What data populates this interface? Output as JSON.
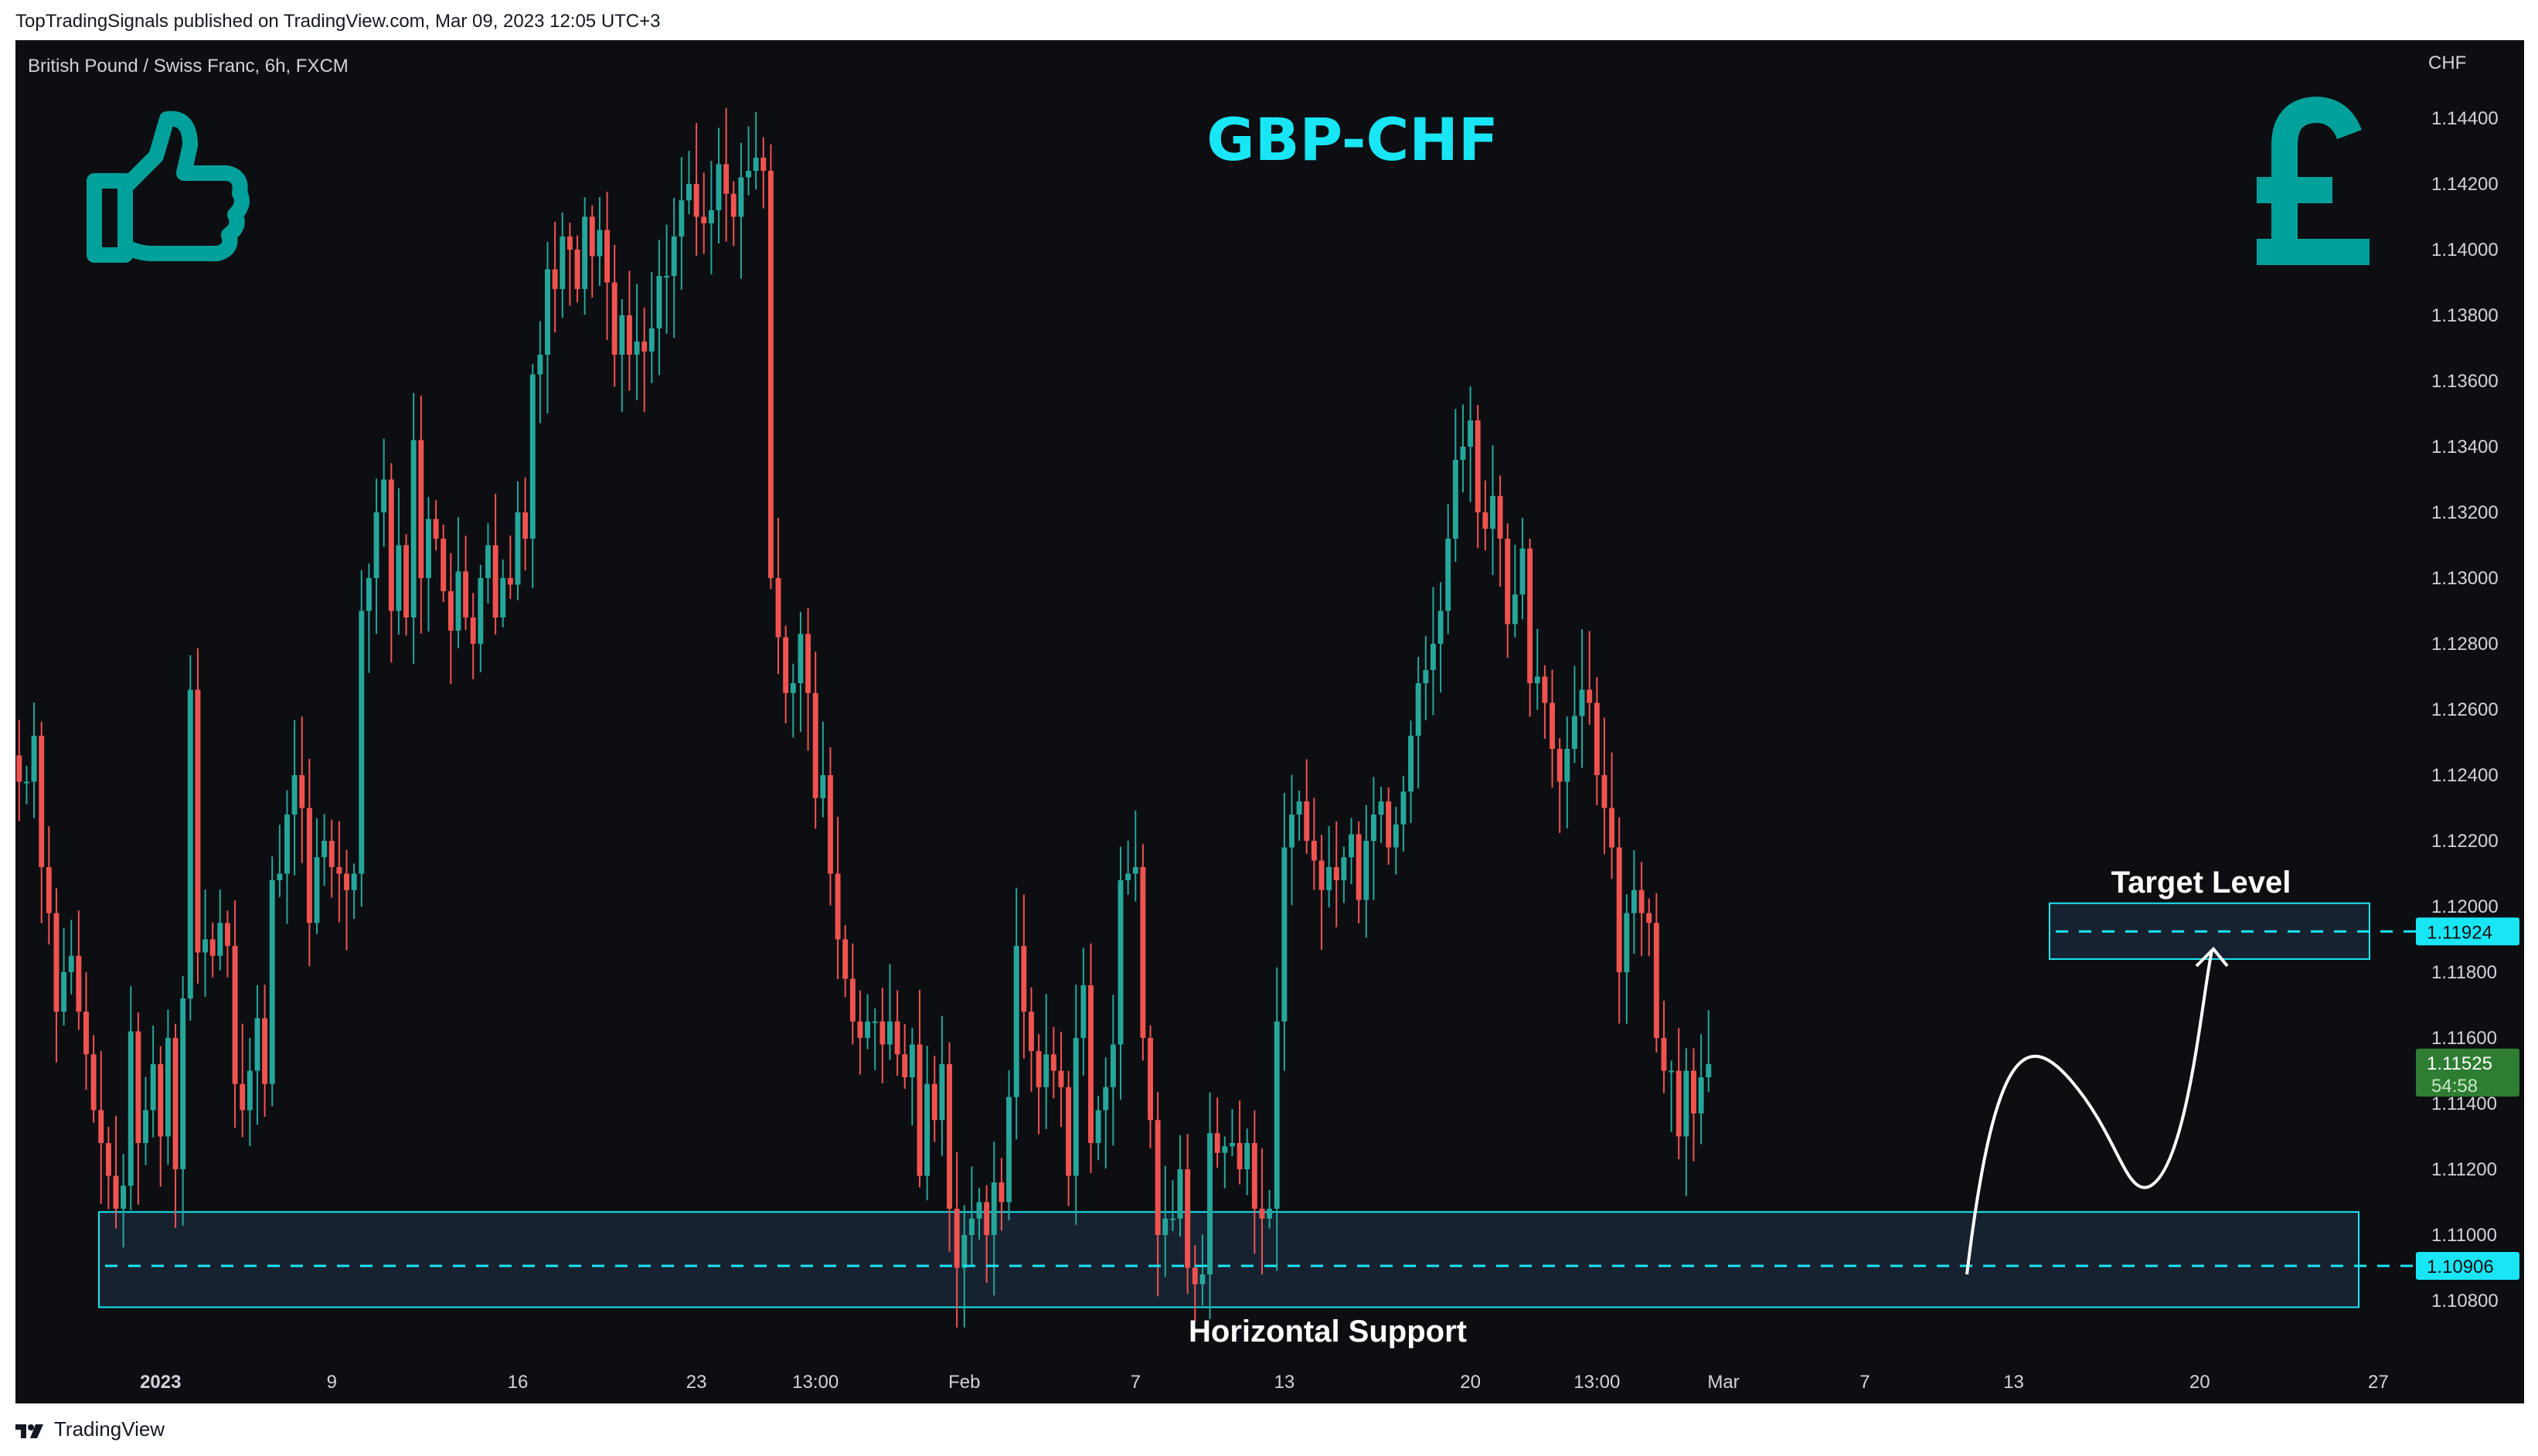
{
  "header": {
    "published_line": "TopTradingSignals published on TradingView.com, Mar 09, 2023 12:05 UTC+3"
  },
  "footer": {
    "brand": "TradingView"
  },
  "colors": {
    "up": "#26a69a",
    "down": "#ef5350",
    "accent": "#19e6f4",
    "icon_teal": "#00a19a",
    "last_price_bg": "#2e7d32"
  },
  "icons": [
    "thumbs-up-icon",
    "pound-sign-icon",
    "tradingview-logo-icon"
  ],
  "chart_data": {
    "type": "candlestick",
    "symbol_label": "British Pound / Swiss Franc, 6h, FXCM",
    "title": "GBP-CHF",
    "currency": "CHF",
    "ylim": [
      1.1068,
      1.1452
    ],
    "y_ticks": [
      "1.10800",
      "1.11000",
      "1.11200",
      "1.11400",
      "1.11600",
      "1.11800",
      "1.12000",
      "1.12200",
      "1.12400",
      "1.12600",
      "1.12800",
      "1.13000",
      "1.13200",
      "1.13400",
      "1.13600",
      "1.13800",
      "1.14000",
      "1.14200",
      "1.14400"
    ],
    "x_ticks": [
      {
        "label": "2023",
        "bold": true,
        "bar": 19
      },
      {
        "label": "9",
        "bar": 42
      },
      {
        "label": "16",
        "bar": 67
      },
      {
        "label": "23",
        "bar": 91
      },
      {
        "label": "13:00",
        "bar": 107
      },
      {
        "label": "Feb",
        "bar": 127
      },
      {
        "label": "7",
        "bar": 150
      },
      {
        "label": "13",
        "bar": 170
      },
      {
        "label": "20",
        "bar": 195
      },
      {
        "label": "13:00",
        "bar": 212
      },
      {
        "label": "Mar",
        "bar": 229
      },
      {
        "label": "7",
        "bar": 248
      },
      {
        "label": "13",
        "bar": 268
      },
      {
        "label": "20",
        "bar": 293
      },
      {
        "label": "27",
        "bar": 317
      }
    ],
    "closes": [
      1.1238,
      1.1238,
      1.1252,
      1.1212,
      1.1198,
      1.1168,
      1.118,
      1.1185,
      1.1168,
      1.1155,
      1.1138,
      1.1128,
      1.1118,
      1.1108,
      1.1115,
      1.1162,
      1.1128,
      1.1138,
      1.1152,
      1.113,
      1.116,
      1.112,
      1.1172,
      1.1266,
      1.1186,
      1.119,
      1.1185,
      1.1195,
      1.1188,
      1.1146,
      1.1138,
      1.115,
      1.1166,
      1.1146,
      1.1208,
      1.121,
      1.1228,
      1.124,
      1.123,
      1.1195,
      1.1215,
      1.122,
      1.1212,
      1.121,
      1.1205,
      1.121,
      1.129,
      1.13,
      1.132,
      1.133,
      1.129,
      1.131,
      1.1288,
      1.1342,
      1.13,
      1.1318,
      1.1312,
      1.1296,
      1.1284,
      1.1302,
      1.1288,
      1.128,
      1.13,
      1.131,
      1.1288,
      1.13,
      1.1298,
      1.132,
      1.1312,
      1.1362,
      1.1368,
      1.1394,
      1.1388,
      1.1404,
      1.14,
      1.1388,
      1.141,
      1.1398,
      1.1406,
      1.139,
      1.1368,
      1.138,
      1.1368,
      1.1372,
      1.1369,
      1.1376,
      1.1392,
      1.1392,
      1.1404,
      1.1415,
      1.142,
      1.141,
      1.1408,
      1.1412,
      1.1426,
      1.1417,
      1.141,
      1.1422,
      1.1424,
      1.1428,
      1.1424,
      1.13,
      1.1282,
      1.1265,
      1.1268,
      1.1283,
      1.1265,
      1.1233,
      1.124,
      1.121,
      1.119,
      1.1178,
      1.1165,
      1.116,
      1.1165,
      1.1165,
      1.1158,
      1.1165,
      1.1155,
      1.1148,
      1.1158,
      1.1118,
      1.1146,
      1.1135,
      1.1152,
      1.1108,
      1.109,
      1.11,
      1.1105,
      1.111,
      1.11,
      1.1116,
      1.111,
      1.1142,
      1.1188,
      1.1168,
      1.1156,
      1.1145,
      1.1155,
      1.115,
      1.1145,
      1.1118,
      1.116,
      1.1176,
      1.1128,
      1.1138,
      1.1145,
      1.1158,
      1.1208,
      1.121,
      1.1212,
      1.116,
      1.1135,
      1.11,
      1.1105,
      1.1105,
      1.112,
      1.109,
      1.1085,
      1.1088,
      1.1131,
      1.1125,
      1.1127,
      1.1128,
      1.112,
      1.1128,
      1.1108,
      1.1105,
      1.1108,
      1.1165,
      1.1218,
      1.1228,
      1.1232,
      1.122,
      1.1214,
      1.1205,
      1.1212,
      1.1208,
      1.1215,
      1.1222,
      1.1202,
      1.122,
      1.1228,
      1.1232,
      1.1218,
      1.1225,
      1.1235,
      1.1252,
      1.1268,
      1.1272,
      1.128,
      1.129,
      1.1312,
      1.1336,
      1.134,
      1.1348,
      1.132,
      1.1315,
      1.1325,
      1.1312,
      1.1286,
      1.1295,
      1.1309,
      1.1268,
      1.127,
      1.1262,
      1.1248,
      1.1238,
      1.1248,
      1.1258,
      1.1266,
      1.1262,
      1.124,
      1.123,
      1.1218,
      1.118,
      1.1198,
      1.1205,
      1.1198,
      1.1195,
      1.116,
      1.115,
      1.115,
      1.113,
      1.115,
      1.1137,
      1.1148,
      1.1152
    ],
    "last_bar": 242,
    "bars_visible": 324,
    "annotations": {
      "horizontal_support_label": "Horizontal Support",
      "horizontal_support_level": "1.10906",
      "support_zone": [
        1.1078,
        1.1107
      ],
      "target_label": "Target Level",
      "target_level": "1.11924",
      "target_zone": [
        1.1184,
        1.1201
      ],
      "projection_path_prices": [
        1.1088,
        1.1154,
        1.1117,
        1.1188
      ]
    },
    "last_price": {
      "value": "1.11525",
      "countdown": "54:58"
    }
  }
}
